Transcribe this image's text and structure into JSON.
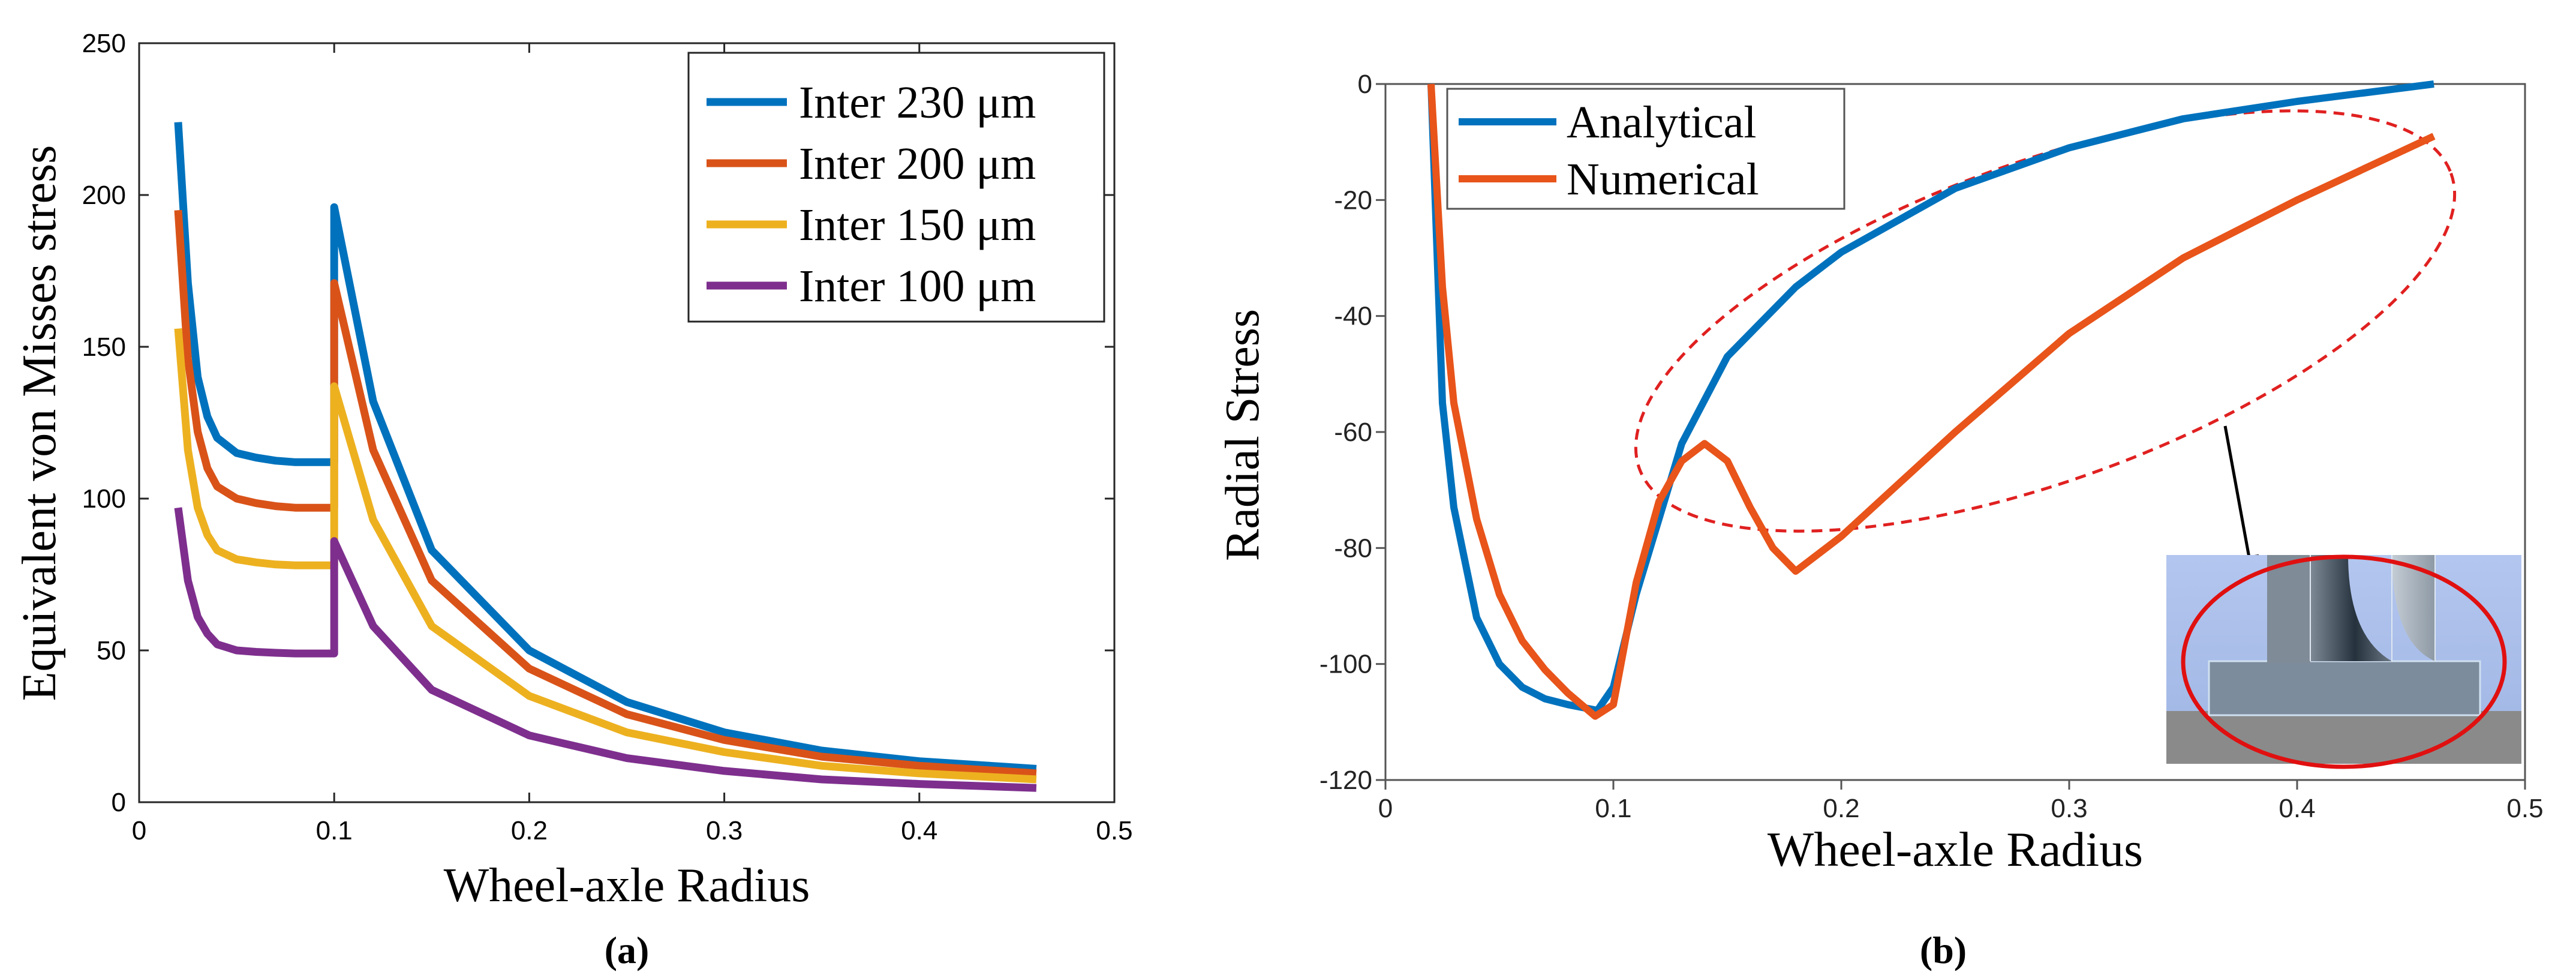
{
  "chart_data": [
    {
      "type": "line",
      "caption": "(a)",
      "xlabel": "Wheel-axle Radius",
      "ylabel": "Equivalent von Misses stress",
      "xlim": [
        0,
        0.5
      ],
      "ylim": [
        0,
        250
      ],
      "xticks": [
        "0",
        "0.1",
        "0.2",
        "0.3",
        "0.4",
        "0.5"
      ],
      "yticks": [
        "0",
        "50",
        "100",
        "150",
        "200",
        "250"
      ],
      "legend_position": "top-right",
      "grid": false,
      "series": [
        {
          "name": "Inter 230 μm",
          "color": "#0072BD",
          "x": [
            0.02,
            0.025,
            0.03,
            0.035,
            0.04,
            0.05,
            0.06,
            0.07,
            0.08,
            0.1,
            0.1,
            0.12,
            0.15,
            0.2,
            0.25,
            0.3,
            0.35,
            0.4,
            0.46
          ],
          "y": [
            224,
            171,
            140,
            127,
            120,
            115,
            113.5,
            112.5,
            112,
            112,
            196,
            132,
            83,
            50,
            33,
            23,
            17,
            13.5,
            11
          ]
        },
        {
          "name": "Inter 200 μm",
          "color": "#D95319",
          "x": [
            0.02,
            0.025,
            0.03,
            0.035,
            0.04,
            0.05,
            0.06,
            0.07,
            0.08,
            0.1,
            0.1,
            0.12,
            0.15,
            0.2,
            0.25,
            0.3,
            0.35,
            0.4,
            0.46
          ],
          "y": [
            195,
            146,
            122,
            110,
            104,
            100,
            98.5,
            97.5,
            97,
            97,
            171,
            116,
            73,
            44,
            29,
            20.5,
            15,
            12,
            9.5
          ]
        },
        {
          "name": "Inter 150 μm",
          "color": "#EDB120",
          "x": [
            0.02,
            0.025,
            0.03,
            0.035,
            0.04,
            0.05,
            0.06,
            0.07,
            0.08,
            0.1,
            0.1,
            0.12,
            0.15,
            0.2,
            0.25,
            0.3,
            0.35,
            0.4,
            0.46
          ],
          "y": [
            156,
            116,
            97,
            88,
            83,
            80,
            79,
            78.3,
            78,
            78,
            137,
            93,
            58,
            35,
            23,
            16.5,
            12,
            9.5,
            7.5
          ]
        },
        {
          "name": "Inter 100 μm",
          "color": "#7E2F8E",
          "x": [
            0.02,
            0.025,
            0.03,
            0.035,
            0.04,
            0.05,
            0.06,
            0.07,
            0.08,
            0.1,
            0.1,
            0.12,
            0.15,
            0.2,
            0.25,
            0.3,
            0.35,
            0.4,
            0.46
          ],
          "y": [
            97,
            73,
            61,
            55.5,
            52,
            50,
            49.5,
            49.2,
            49,
            49,
            86,
            58,
            37,
            22,
            14.5,
            10.3,
            7.5,
            6,
            4.7
          ]
        }
      ]
    },
    {
      "type": "line",
      "caption": "(b)",
      "xlabel": "Wheel-axle Radius",
      "ylabel": "Radial Stress",
      "xlim": [
        0,
        0.5
      ],
      "ylim": [
        -120,
        0
      ],
      "xticks": [
        "0",
        "0.1",
        "0.2",
        "0.3",
        "0.4",
        "0.5"
      ],
      "yticks": [
        "0",
        "-20",
        "-40",
        "-60",
        "-80",
        "-100",
        "-120"
      ],
      "legend_position": "top-left",
      "grid": false,
      "annotations": [
        "dashed red ellipse around curves from 0.1 to 0.46",
        "inset image of wheel-axle contact region with red ellipse"
      ],
      "series": [
        {
          "name": "Analytical",
          "color": "#0072BD",
          "x": [
            0.02,
            0.025,
            0.03,
            0.04,
            0.05,
            0.06,
            0.07,
            0.08,
            0.093,
            0.1,
            0.11,
            0.12,
            0.13,
            0.15,
            0.18,
            0.2,
            0.25,
            0.3,
            0.35,
            0.4,
            0.46
          ],
          "y": [
            0,
            -55,
            -73,
            -92,
            -100,
            -104,
            -106,
            -107,
            -108,
            -104,
            -88,
            -75,
            -62,
            -47,
            -35,
            -29,
            -18,
            -11,
            -6,
            -3,
            0
          ]
        },
        {
          "name": "Numerical",
          "color": "#E8541A",
          "x": [
            0.02,
            0.025,
            0.03,
            0.04,
            0.05,
            0.06,
            0.07,
            0.08,
            0.092,
            0.1,
            0.11,
            0.12,
            0.13,
            0.14,
            0.15,
            0.16,
            0.17,
            0.18,
            0.2,
            0.25,
            0.3,
            0.35,
            0.4,
            0.46
          ],
          "y": [
            0,
            -35,
            -55,
            -75,
            -88,
            -96,
            -101,
            -105,
            -109,
            -107,
            -86,
            -72,
            -65,
            -62,
            -65,
            -73,
            -80,
            -84,
            -78,
            -60,
            -43,
            -30,
            -20,
            -9
          ]
        }
      ]
    }
  ]
}
